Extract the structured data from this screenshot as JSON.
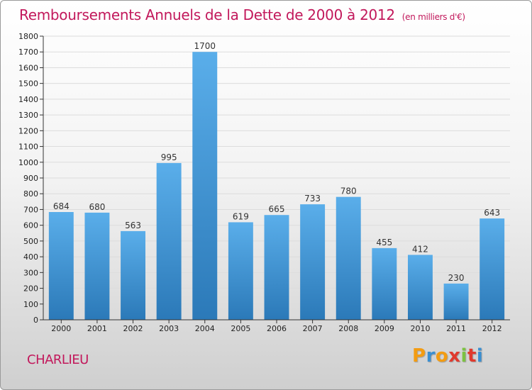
{
  "header": {
    "title": "Remboursements Annuels de la Dette de 2000 à 2012",
    "unit": "(en milliers d'€)"
  },
  "footer": {
    "commune": "CHARLIEU",
    "logo_letters": [
      "P",
      "r",
      "o",
      "x",
      "i",
      "t",
      "i"
    ],
    "logo_colors": [
      "#f39c12",
      "#3a8fd1",
      "#f39c12",
      "#e03a2e",
      "#7cc242",
      "#e03a2e",
      "#3a8fd1"
    ]
  },
  "colors": {
    "bar_top": "#5aaeea",
    "bar_bottom": "#2b79b8",
    "title": "#c2185b"
  },
  "chart_data": {
    "type": "bar",
    "categories": [
      "2000",
      "2001",
      "2002",
      "2003",
      "2004",
      "2005",
      "2006",
      "2007",
      "2008",
      "2009",
      "2010",
      "2011",
      "2012"
    ],
    "values": [
      684,
      680,
      563,
      995,
      1700,
      619,
      665,
      733,
      780,
      455,
      412,
      230,
      643
    ],
    "ylim": [
      0,
      1800
    ],
    "yticks": [
      0,
      100,
      200,
      300,
      400,
      500,
      600,
      700,
      800,
      900,
      1000,
      1100,
      1200,
      1300,
      1400,
      1500,
      1600,
      1700,
      1800
    ],
    "grid": true,
    "data_labels": true
  }
}
